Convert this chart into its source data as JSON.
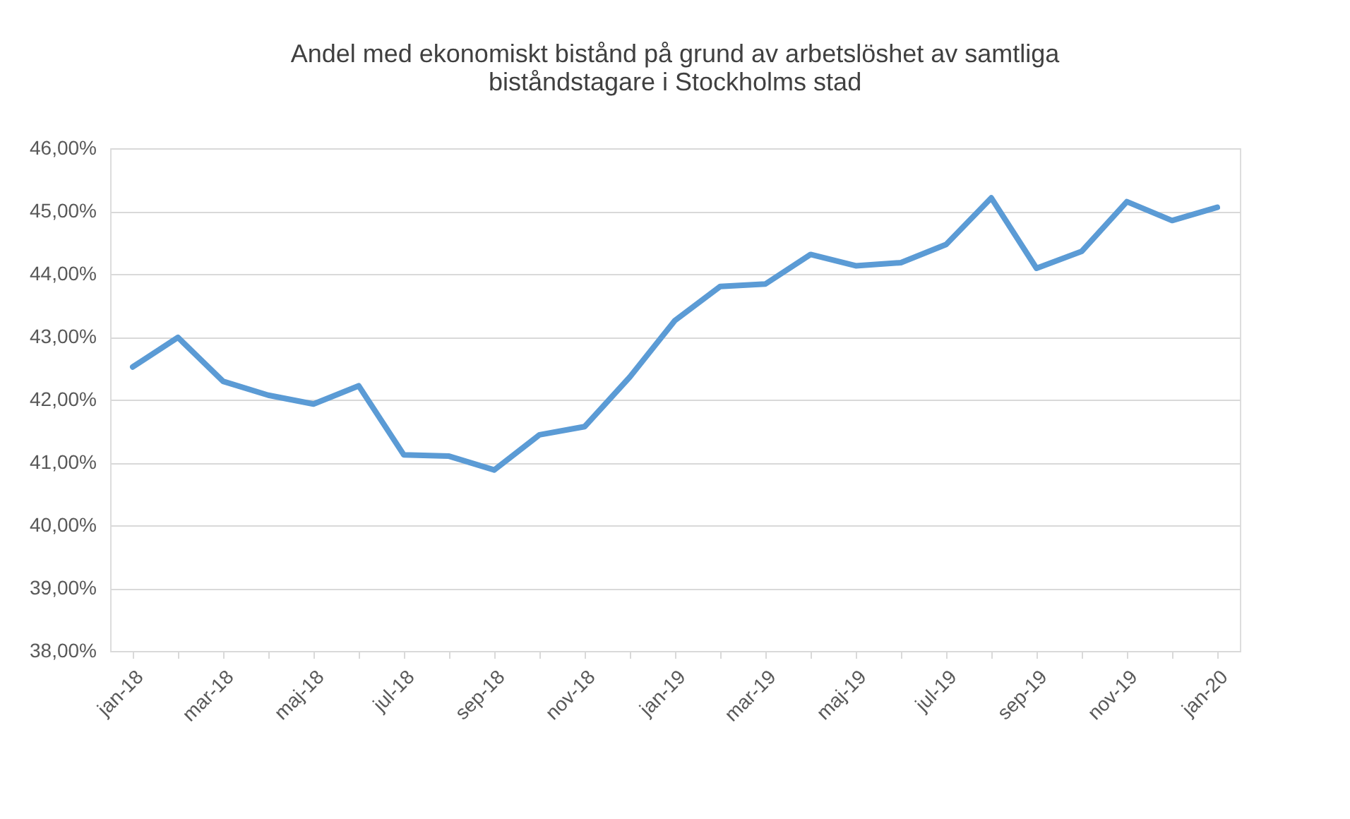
{
  "chart_data": {
    "type": "line",
    "title": "Andel med  ekonomiskt bistånd på grund av arbetslöshet av samtliga biståndstagare i Stockholms stad",
    "categories": [
      "jan-18",
      null,
      "mar-18",
      null,
      "maj-18",
      null,
      "jul-18",
      null,
      "sep-18",
      null,
      "nov-18",
      null,
      "jan-19",
      null,
      "mar-19",
      null,
      "maj-19",
      null,
      "jul-19",
      null,
      "sep-19",
      null,
      "nov-19",
      null,
      "jan-20"
    ],
    "series": [
      {
        "color": "#5b9bd5",
        "values": [
          42.52,
          42.99,
          42.29,
          42.07,
          41.93,
          42.22,
          41.12,
          41.1,
          40.88,
          41.44,
          41.57,
          42.36,
          43.26,
          43.8,
          43.84,
          44.31,
          44.13,
          44.18,
          44.47,
          45.21,
          44.09,
          44.36,
          45.15,
          44.85,
          45.06
        ]
      }
    ],
    "ylim": [
      38,
      46
    ],
    "yticks": [
      {
        "value": 38,
        "label": "38,00%"
      },
      {
        "value": 39,
        "label": "39,00%"
      },
      {
        "value": 40,
        "label": "40,00%"
      },
      {
        "value": 41,
        "label": "41,00%"
      },
      {
        "value": 42,
        "label": "42,00%"
      },
      {
        "value": 43,
        "label": "43,00%"
      },
      {
        "value": 44,
        "label": "44,00%"
      },
      {
        "value": 45,
        "label": "45,00%"
      },
      {
        "value": 46,
        "label": "46,00%"
      }
    ],
    "grid": "y",
    "marker": "none",
    "line_style": "solid"
  }
}
